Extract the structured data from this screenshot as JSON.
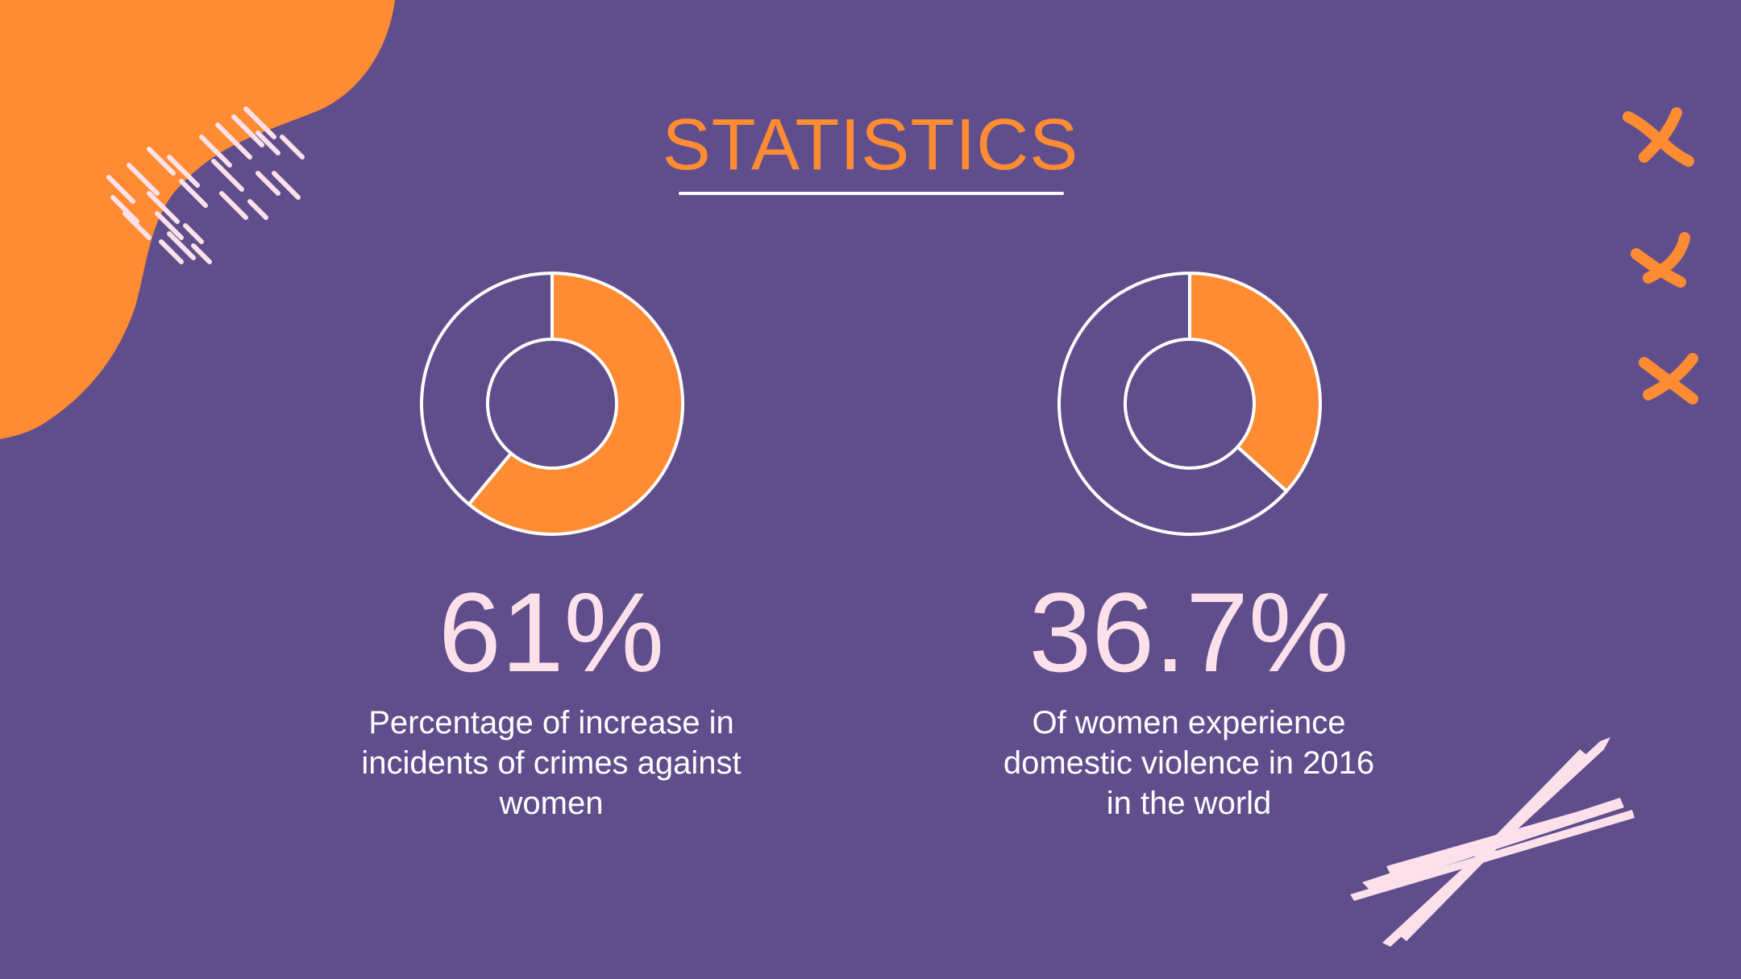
{
  "slide": {
    "title": "STATISTICS"
  },
  "colors": {
    "background": "#604e8c",
    "accent": "#ff8c33",
    "pink": "#fce1ea",
    "white": "#ffffff"
  },
  "chart_data": [
    {
      "type": "pie",
      "variant": "donut",
      "slices": [
        {
          "value": 61,
          "color": "#ff8c33"
        },
        {
          "value": 39,
          "color": "#604e8c"
        }
      ],
      "value_label": "61%",
      "description_lines": [
        "Percentage of increase in",
        "incidents of crimes against",
        "women"
      ]
    },
    {
      "type": "pie",
      "variant": "donut",
      "slices": [
        {
          "value": 36.7,
          "color": "#ff8c33"
        },
        {
          "value": 63.3,
          "color": "#604e8c"
        }
      ],
      "value_label": "36.7%",
      "description_lines": [
        "Of women experience",
        "domestic violence in 2016",
        "in the world"
      ]
    }
  ]
}
